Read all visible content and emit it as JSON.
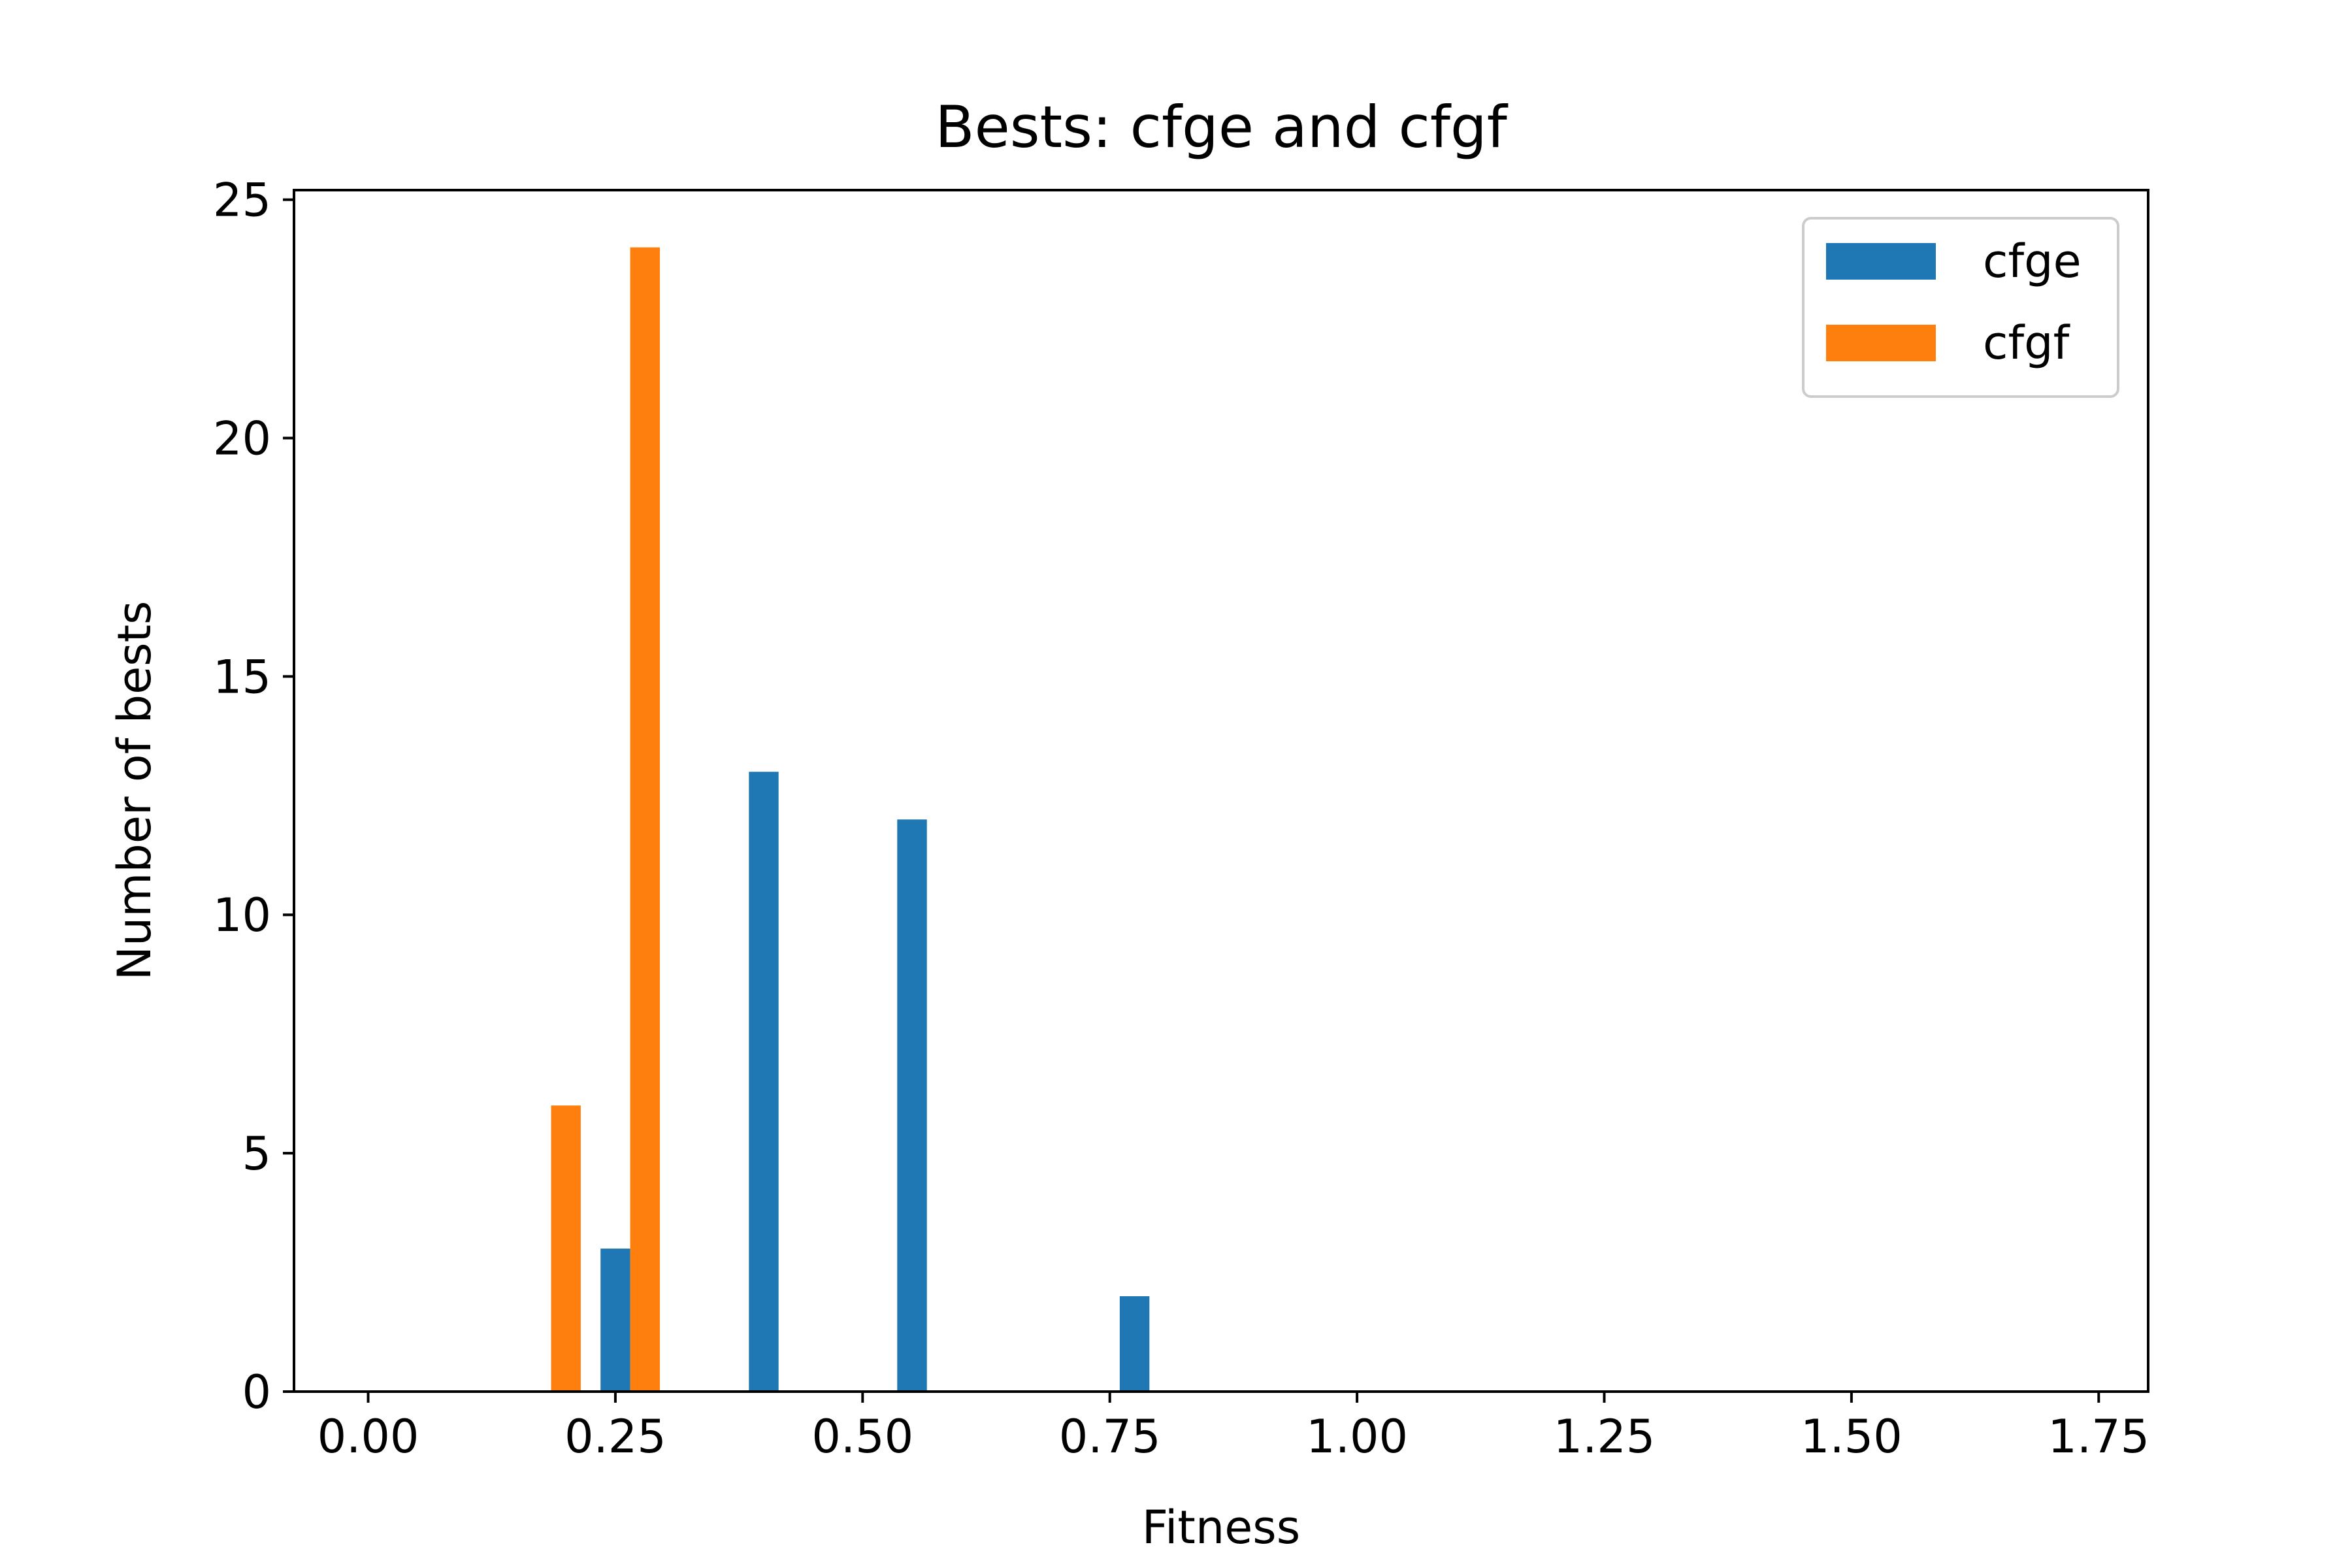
{
  "chart_data": {
    "type": "bar",
    "title": "Bests: cfge and cfgf",
    "xlabel": "Fitness",
    "ylabel": "Number of bests",
    "xlim": [
      -0.075,
      1.8
    ],
    "ylim": [
      0,
      25.2
    ],
    "xticks": [
      0.0,
      0.25,
      0.5,
      0.75,
      1.0,
      1.25,
      1.5,
      1.75
    ],
    "xtick_labels": [
      "0.00",
      "0.25",
      "0.50",
      "0.75",
      "1.00",
      "1.25",
      "1.50",
      "1.75"
    ],
    "yticks": [
      0,
      5,
      10,
      15,
      20,
      25
    ],
    "ytick_labels": [
      "0",
      "5",
      "10",
      "15",
      "20",
      "25"
    ],
    "bar_width": 0.03,
    "grid": false,
    "legend": "upper-right",
    "series": [
      {
        "name": "cfge",
        "color": "#1f77b4",
        "points": [
          {
            "x": 0.25,
            "y": 3
          },
          {
            "x": 0.4,
            "y": 13
          },
          {
            "x": 0.55,
            "y": 12
          },
          {
            "x": 0.775,
            "y": 2
          }
        ]
      },
      {
        "name": "cfgf",
        "color": "#ff7f0e",
        "points": [
          {
            "x": 0.2,
            "y": 6
          },
          {
            "x": 0.28,
            "y": 24
          }
        ]
      }
    ]
  }
}
